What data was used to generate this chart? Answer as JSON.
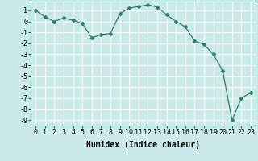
{
  "x": [
    0,
    1,
    2,
    3,
    4,
    5,
    6,
    7,
    8,
    9,
    10,
    11,
    12,
    13,
    14,
    15,
    16,
    17,
    18,
    19,
    20,
    21,
    22,
    23
  ],
  "y": [
    1,
    0.4,
    0.0,
    0.3,
    0.1,
    -0.2,
    -1.5,
    -1.2,
    -1.1,
    0.7,
    1.2,
    1.35,
    1.5,
    1.3,
    0.6,
    0.0,
    -0.5,
    -1.8,
    -2.1,
    -3.0,
    -4.5,
    -9.0,
    -7.0,
    -6.5
  ],
  "line_color": "#2e7d6e",
  "marker": "D",
  "marker_size": 2.5,
  "bg_color": "#cce9e9",
  "grid_color": "#ffffff",
  "xlabel": "Humidex (Indice chaleur)",
  "xlim": [
    -0.5,
    23.5
  ],
  "ylim": [
    -9.5,
    1.8
  ],
  "yticks": [
    1,
    0,
    -1,
    -2,
    -3,
    -4,
    -5,
    -6,
    -7,
    -8,
    -9
  ],
  "xticks": [
    0,
    1,
    2,
    3,
    4,
    5,
    6,
    7,
    8,
    9,
    10,
    11,
    12,
    13,
    14,
    15,
    16,
    17,
    18,
    19,
    20,
    21,
    22,
    23
  ],
  "label_fontsize": 7,
  "tick_fontsize": 6
}
